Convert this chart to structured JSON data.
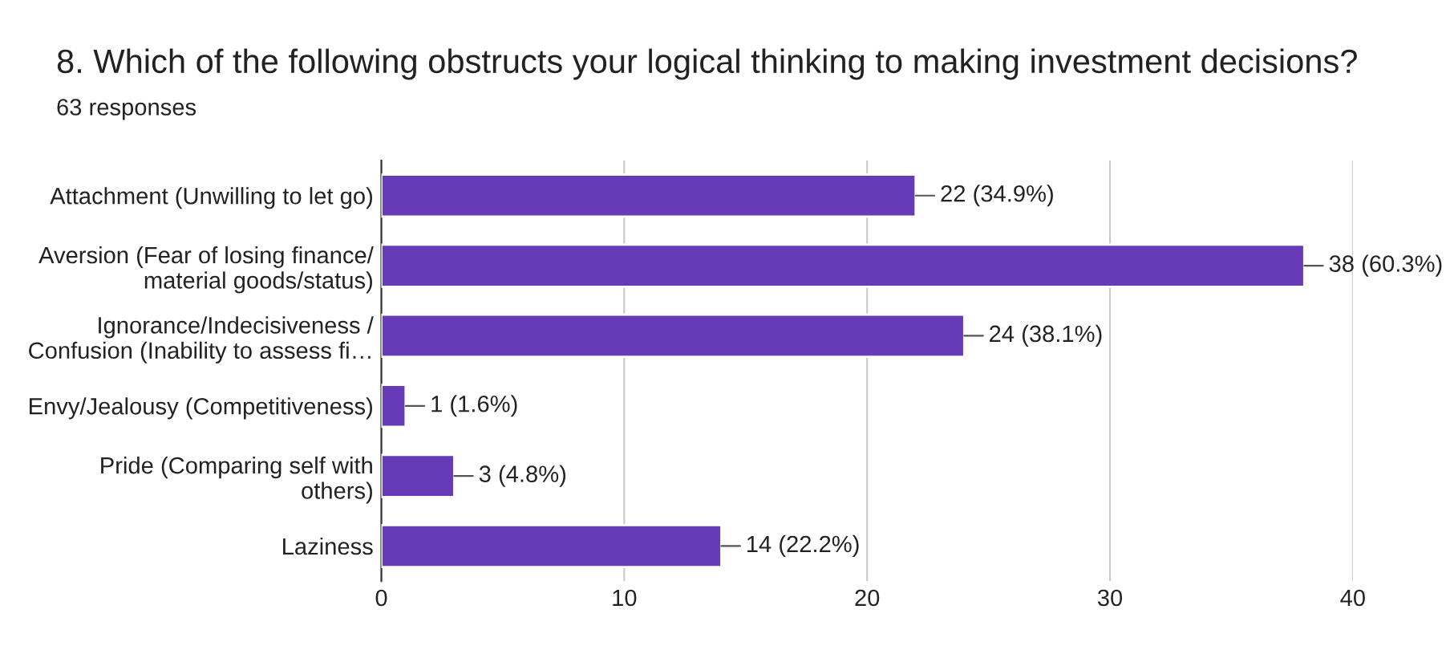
{
  "chart_data": {
    "type": "bar",
    "orientation": "horizontal",
    "title": "8. Which of the following obstructs your logical thinking to making investment decisions?",
    "subtitle": "63 responses",
    "categories": [
      "Attachment (Unwilling to let go)",
      "Aversion (Fear of losing finance/\nmaterial goods/status)",
      "Ignorance/Indecisiveness /\nConfusion (Inability to assess fi…",
      "Envy/Jealousy (Competitiveness)",
      "Pride (Comparing self with\nothers)",
      "Laziness"
    ],
    "values": [
      22,
      38,
      24,
      1,
      3,
      14
    ],
    "value_labels": [
      "22 (34.9%)",
      "38 (60.3%)",
      "24 (38.1%)",
      "1 (1.6%)",
      "3 (4.8%)",
      "14 (22.2%)"
    ],
    "color": "#673ab7",
    "xlim": [
      0,
      40
    ],
    "xticks": [
      0,
      10,
      20,
      30,
      40
    ],
    "grid": "x",
    "legend": false
  }
}
